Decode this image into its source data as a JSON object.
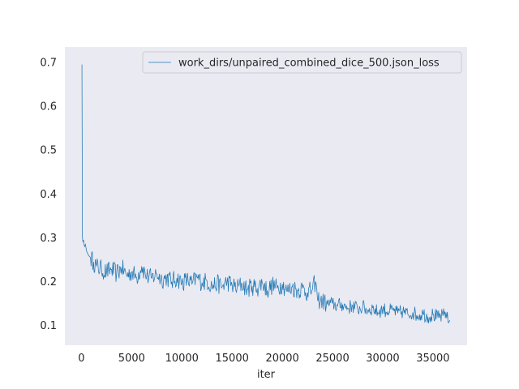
{
  "chart_data": {
    "type": "line",
    "title": "",
    "xlabel": "iter",
    "ylabel": "",
    "xlim": [
      -1650,
      38400
    ],
    "ylim": [
      0.055,
      0.735
    ],
    "x_ticks": [
      0,
      5000,
      10000,
      15000,
      20000,
      25000,
      30000,
      35000
    ],
    "x_tick_labels": [
      "0",
      "5000",
      "10000",
      "15000",
      "20000",
      "25000",
      "30000",
      "35000"
    ],
    "y_ticks": [
      0.1,
      0.2,
      0.3,
      0.4,
      0.5,
      0.6,
      0.7
    ],
    "y_tick_labels": [
      "0.1",
      "0.2",
      "0.3",
      "0.4",
      "0.5",
      "0.6",
      "0.7"
    ],
    "grid": false,
    "legend_position": "top-right",
    "line_color": "#1f77b4",
    "background_color": "#eaeaf2",
    "series": [
      {
        "name": "work_dirs/unpaired_combined_dice_500.json_loss",
        "x": [
          50,
          100,
          150,
          200,
          300,
          400,
          500,
          700,
          900,
          1200,
          1500,
          2000,
          2500,
          3000,
          3500,
          4000,
          4500,
          5000,
          5500,
          6000,
          6500,
          7000,
          7500,
          8000,
          8500,
          9000,
          9500,
          10000,
          10500,
          11000,
          11500,
          12000,
          12500,
          13000,
          13500,
          14000,
          14500,
          15000,
          15500,
          16000,
          16500,
          17000,
          17500,
          18000,
          18500,
          19000,
          19500,
          20000,
          20500,
          21000,
          21500,
          22000,
          22500,
          23000,
          23300,
          23500,
          24000,
          24500,
          25000,
          25500,
          26000,
          26500,
          27000,
          27500,
          28000,
          28500,
          29000,
          29500,
          30000,
          30500,
          31000,
          31500,
          32000,
          32500,
          33000,
          33500,
          34000,
          34500,
          35000,
          35500,
          36000,
          36300,
          36500,
          36700
        ],
        "y": [
          0.695,
          0.3,
          0.29,
          0.295,
          0.28,
          0.285,
          0.27,
          0.26,
          0.255,
          0.245,
          0.235,
          0.228,
          0.222,
          0.228,
          0.218,
          0.232,
          0.215,
          0.222,
          0.21,
          0.235,
          0.212,
          0.208,
          0.218,
          0.205,
          0.21,
          0.2,
          0.208,
          0.198,
          0.204,
          0.195,
          0.21,
          0.198,
          0.202,
          0.19,
          0.196,
          0.188,
          0.2,
          0.192,
          0.186,
          0.195,
          0.182,
          0.19,
          0.185,
          0.198,
          0.18,
          0.192,
          0.185,
          0.195,
          0.178,
          0.188,
          0.18,
          0.185,
          0.175,
          0.182,
          0.2,
          0.16,
          0.155,
          0.148,
          0.15,
          0.145,
          0.148,
          0.14,
          0.145,
          0.138,
          0.142,
          0.135,
          0.14,
          0.13,
          0.138,
          0.132,
          0.135,
          0.128,
          0.132,
          0.125,
          0.13,
          0.122,
          0.128,
          0.12,
          0.125,
          0.118,
          0.122,
          0.13,
          0.108,
          0.112
        ]
      }
    ]
  }
}
